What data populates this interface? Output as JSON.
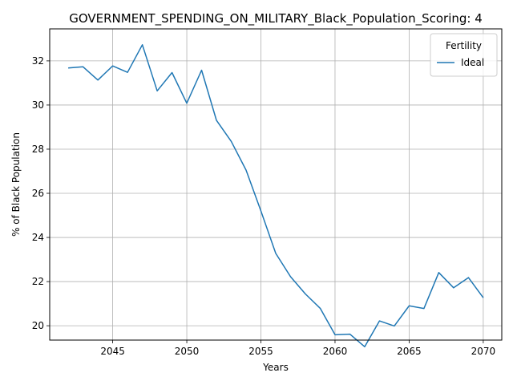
{
  "chart_data": {
    "type": "line",
    "title": "GOVERNMENT_SPENDING_ON_MILITARY_Black_Population_Scoring: 4",
    "xlabel": "Years",
    "ylabel": "% of Black Population",
    "xlim": [
      2040.75,
      2071.25
    ],
    "ylim": [
      19.35,
      33.45
    ],
    "x_ticks": [
      2045,
      2050,
      2055,
      2060,
      2065,
      2070
    ],
    "y_ticks": [
      20,
      22,
      24,
      26,
      28,
      30,
      32
    ],
    "grid": true,
    "legend": {
      "title": "Fertility",
      "placement": "top-right"
    },
    "series": [
      {
        "name": "Ideal",
        "color": "#1f77b4",
        "x": [
          2042,
          2043,
          2044,
          2045,
          2046,
          2047,
          2048,
          2049,
          2050,
          2051,
          2052,
          2053,
          2054,
          2055,
          2056,
          2057,
          2058,
          2059,
          2060,
          2061,
          2062,
          2063,
          2064,
          2065,
          2066,
          2067,
          2068,
          2069,
          2070
        ],
        "values": [
          31.68,
          31.73,
          31.13,
          31.77,
          31.48,
          32.73,
          30.64,
          31.47,
          30.08,
          31.58,
          29.31,
          28.35,
          27.05,
          25.2,
          23.28,
          22.22,
          21.44,
          20.79,
          19.59,
          19.62,
          19.05,
          20.22,
          19.99,
          20.9,
          20.78,
          22.41,
          21.72,
          22.18,
          21.27
        ]
      }
    ]
  }
}
